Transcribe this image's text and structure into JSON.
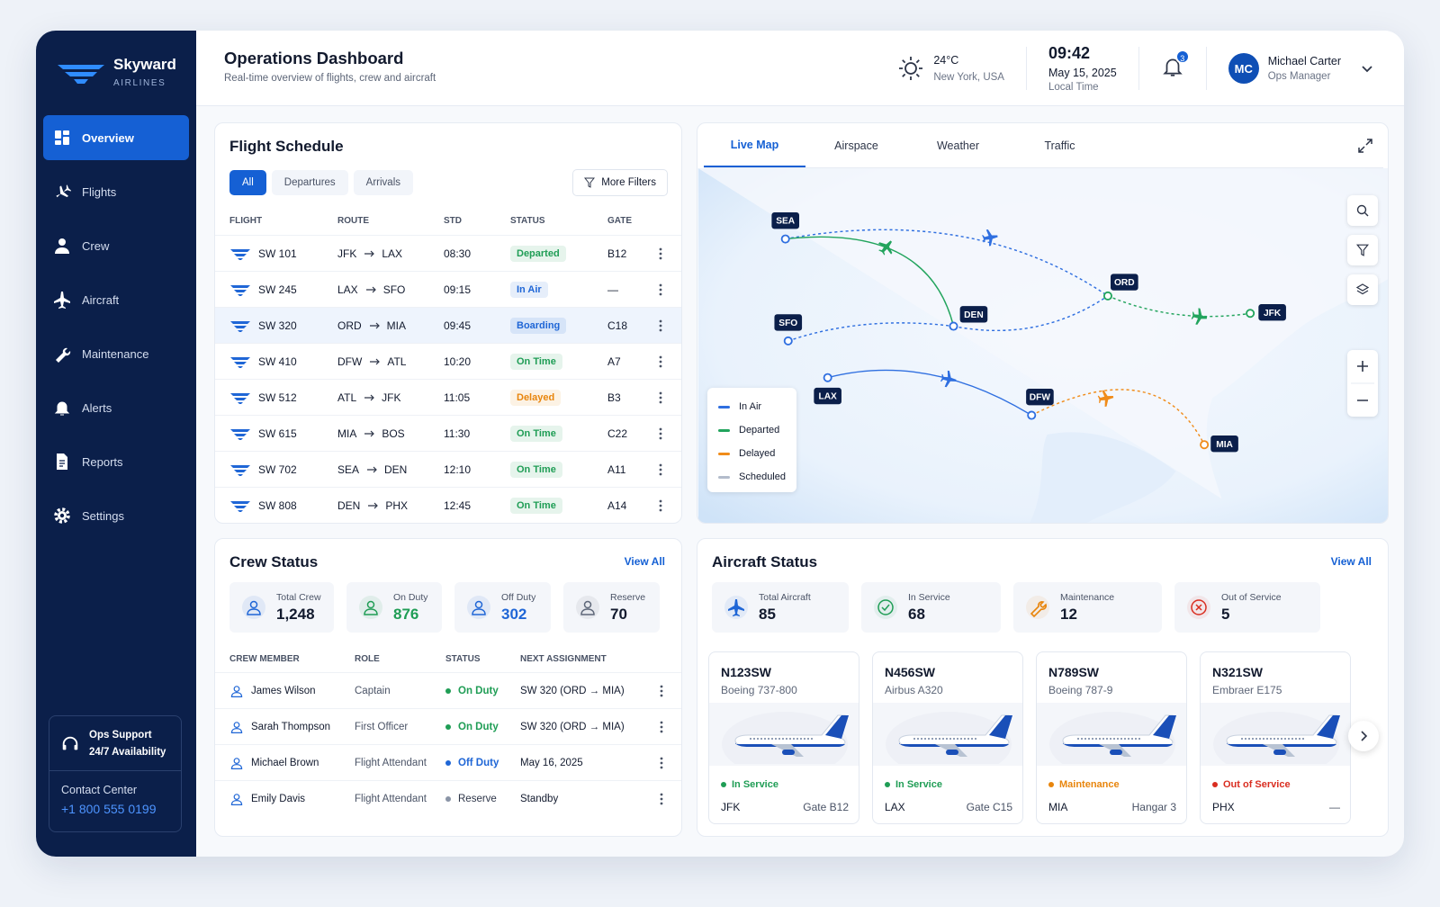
{
  "brand": {
    "name": "Skyward",
    "tagline": "AIRLINES"
  },
  "nav": [
    "Overview",
    "Flights",
    "Crew",
    "Aircraft",
    "Maintenance",
    "Alerts",
    "Reports",
    "Settings"
  ],
  "support": {
    "title": "Ops Support",
    "hours": "24/7 Availability",
    "contact_label": "Contact Center",
    "phone": "+1 800 555 0199"
  },
  "header": {
    "title": "Operations Dashboard",
    "subtitle": "Real-time overview of flights, crew and aircraft",
    "temperature": "24°C",
    "location": "New York, USA",
    "time": "09:42",
    "date": "May 15, 2025",
    "time_label": "Local Time",
    "notifications": "3",
    "user": {
      "initials": "MC",
      "name": "Michael Carter",
      "role": "Ops Manager"
    }
  },
  "status_colors": {
    "Departed": "#1f9d55",
    "In Air": "#1f66d6",
    "Boarding": "#1f66d6",
    "On Time": "#1f9d55",
    "Delayed": "#e8850c",
    "On Duty": "#1f9d55",
    "Off Duty": "#1f66d6",
    "Reserve": "#8a94a6",
    "In Service": "#1f9d55",
    "Maintenance": "#e8850c",
    "Out of Service": "#d92d20"
  },
  "flight_schedule": {
    "title": "Flight Schedule",
    "tabs": [
      "All",
      "Departures",
      "Arrivals"
    ],
    "filter": "More Filters",
    "columns": [
      "FLIGHT",
      "ROUTE",
      "STD",
      "STATUS",
      "GATE"
    ],
    "rows": [
      {
        "flight": "SW 101",
        "from": "JFK",
        "to": "LAX",
        "std": "08:30",
        "status": "Departed",
        "gate": "B12"
      },
      {
        "flight": "SW 245",
        "from": "LAX",
        "to": "SFO",
        "std": "09:15",
        "status": "In Air",
        "gate": "—"
      },
      {
        "flight": "SW 320",
        "from": "ORD",
        "to": "MIA",
        "std": "09:45",
        "status": "Boarding",
        "gate": "C18"
      },
      {
        "flight": "SW 410",
        "from": "DFW",
        "to": "ATL",
        "std": "10:20",
        "status": "On Time",
        "gate": "A7"
      },
      {
        "flight": "SW 512",
        "from": "ATL",
        "to": "JFK",
        "std": "11:05",
        "status": "Delayed",
        "gate": "B3"
      },
      {
        "flight": "SW 615",
        "from": "MIA",
        "to": "BOS",
        "std": "11:30",
        "status": "On Time",
        "gate": "C22"
      },
      {
        "flight": "SW 702",
        "from": "SEA",
        "to": "DEN",
        "std": "12:10",
        "status": "On Time",
        "gate": "A11"
      },
      {
        "flight": "SW 808",
        "from": "DEN",
        "to": "PHX",
        "std": "12:45",
        "status": "On Time",
        "gate": "A14"
      }
    ]
  },
  "live_map": {
    "tabs": [
      "Live Map",
      "Airspace",
      "Weather",
      "Traffic"
    ],
    "airports": [
      "SEA",
      "SFO",
      "LAX",
      "DEN",
      "ORD",
      "DFW",
      "JFK",
      "MIA"
    ],
    "legend": [
      {
        "name": "In Air",
        "color": "#2f6fe0"
      },
      {
        "name": "Departed",
        "color": "#22a45d"
      },
      {
        "name": "Delayed",
        "color": "#f08c1a"
      },
      {
        "name": "Scheduled",
        "color": "#b3bccb"
      }
    ]
  },
  "crew_status": {
    "title": "Crew Status",
    "view_all": "View All",
    "stats": [
      {
        "label": "Total Crew",
        "value": "1,248",
        "color": "#1f66d6",
        "value_color": "#121a2e"
      },
      {
        "label": "On Duty",
        "value": "876",
        "color": "#1f9d55",
        "value_color": "#1f9d55"
      },
      {
        "label": "Off Duty",
        "value": "302",
        "color": "#1f66d6",
        "value_color": "#1f66d6"
      },
      {
        "label": "Reserve",
        "value": "70",
        "color": "#5d6678",
        "value_color": "#121a2e"
      }
    ],
    "columns": [
      "CREW MEMBER",
      "ROLE",
      "STATUS",
      "NEXT ASSIGNMENT"
    ],
    "rows": [
      {
        "name": "James Wilson",
        "role": "Captain",
        "status": "On Duty",
        "next": "SW 320 (ORD → MIA)"
      },
      {
        "name": "Sarah Thompson",
        "role": "First Officer",
        "status": "On Duty",
        "next": "SW 320 (ORD → MIA)"
      },
      {
        "name": "Michael Brown",
        "role": "Flight Attendant",
        "status": "Off Duty",
        "next": "May 16, 2025"
      },
      {
        "name": "Emily Davis",
        "role": "Flight Attendant",
        "status": "Reserve",
        "next": "Standby"
      }
    ]
  },
  "aircraft_status": {
    "title": "Aircraft Status",
    "view_all": "View All",
    "stats": [
      {
        "label": "Total Aircraft",
        "value": "85",
        "color": "#1f66d6"
      },
      {
        "label": "In Service",
        "value": "68",
        "color": "#1f9d55"
      },
      {
        "label": "Maintenance",
        "value": "12",
        "color": "#e8850c"
      },
      {
        "label": "Out of Service",
        "value": "5",
        "color": "#d92d20"
      }
    ],
    "cards": [
      {
        "registration": "N123SW",
        "model": "Boeing 737-800",
        "status": "In Service",
        "location": "JFK",
        "position": "Gate B12"
      },
      {
        "registration": "N456SW",
        "model": "Airbus A320",
        "status": "In Service",
        "location": "LAX",
        "position": "Gate C15"
      },
      {
        "registration": "N789SW",
        "model": "Boeing 787-9",
        "status": "Maintenance",
        "location": "MIA",
        "position": "Hangar 3"
      },
      {
        "registration": "N321SW",
        "model": "Embraer E175",
        "status": "Out of Service",
        "location": "PHX",
        "position": "—"
      }
    ]
  }
}
